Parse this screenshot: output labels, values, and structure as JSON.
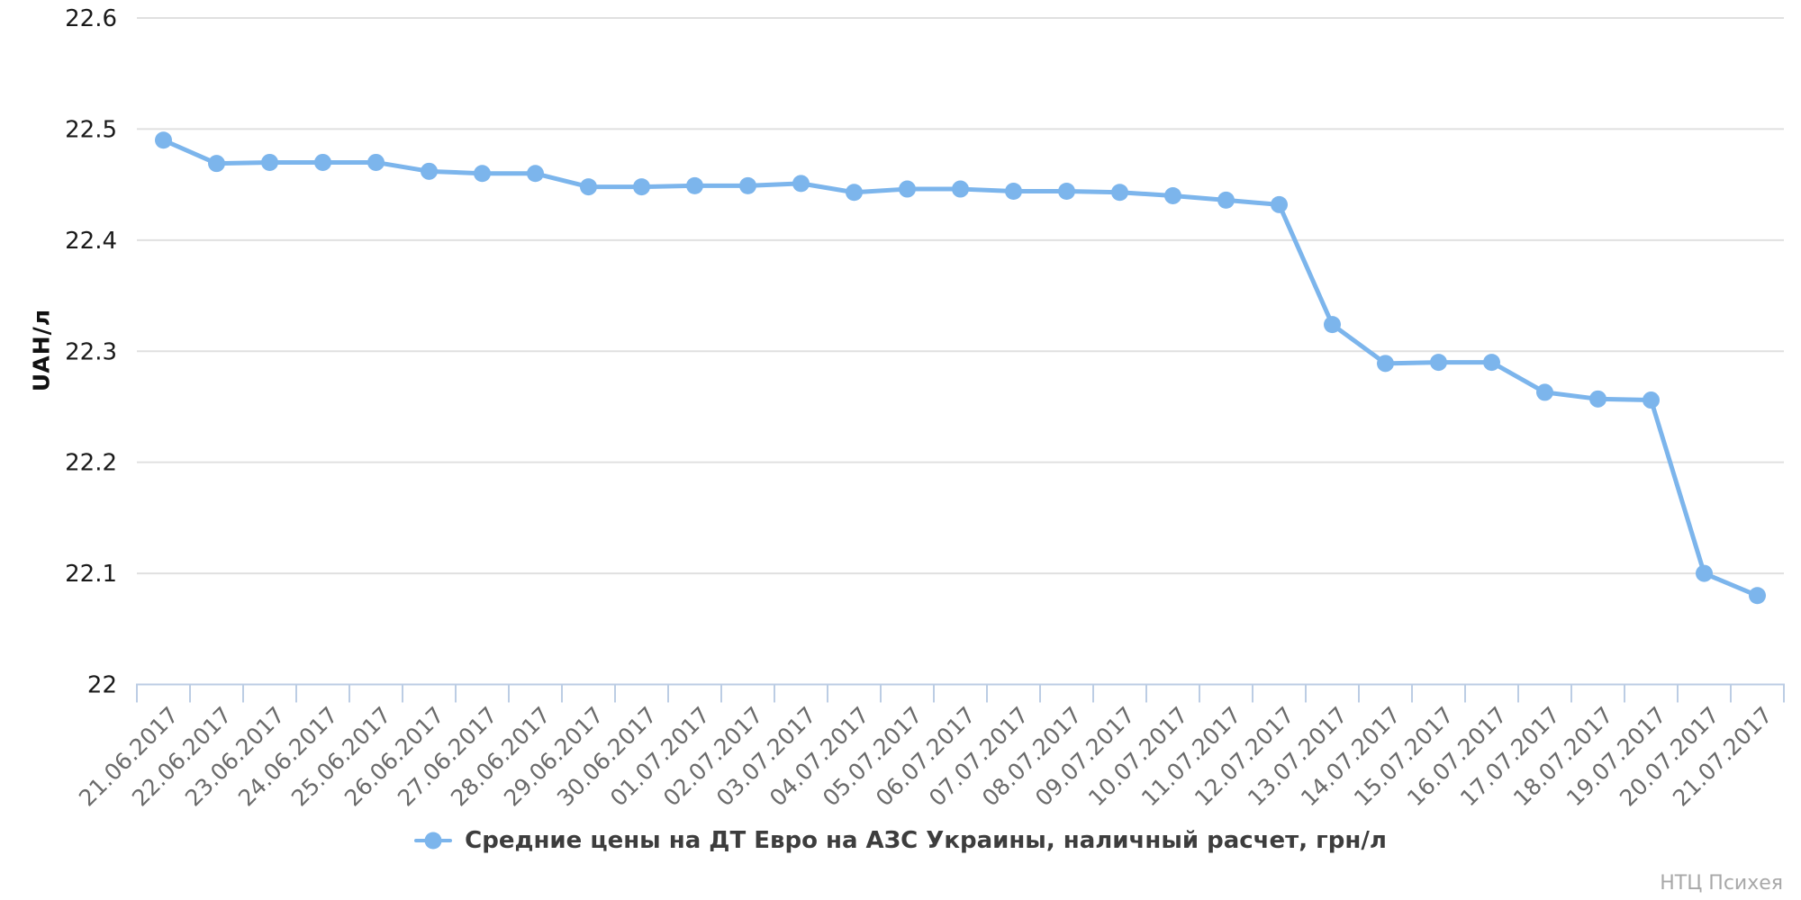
{
  "chart_data": {
    "type": "line",
    "title": "",
    "x": [
      "21.06.2017",
      "22.06.2017",
      "23.06.2017",
      "24.06.2017",
      "25.06.2017",
      "26.06.2017",
      "27.06.2017",
      "28.06.2017",
      "29.06.2017",
      "30.06.2017",
      "01.07.2017",
      "02.07.2017",
      "03.07.2017",
      "04.07.2017",
      "05.07.2017",
      "06.07.2017",
      "07.07.2017",
      "08.07.2017",
      "09.07.2017",
      "10.07.2017",
      "11.07.2017",
      "12.07.2017",
      "13.07.2017",
      "14.07.2017",
      "15.07.2017",
      "16.07.2017",
      "17.07.2017",
      "18.07.2017",
      "19.07.2017",
      "20.07.2017",
      "21.07.2017"
    ],
    "series": [
      {
        "name": "Средние цены на ДТ Евро на АЗС Украины, наличный расчет, грн/л",
        "values": [
          22.49,
          22.469,
          22.47,
          22.47,
          22.47,
          22.462,
          22.46,
          22.46,
          22.448,
          22.448,
          22.449,
          22.449,
          22.451,
          22.443,
          22.446,
          22.446,
          22.444,
          22.444,
          22.443,
          22.44,
          22.436,
          22.432,
          22.324,
          22.289,
          22.29,
          22.29,
          22.263,
          22.257,
          22.256,
          22.1,
          22.08
        ]
      }
    ],
    "xlabel": "",
    "ylabel": "UAH/л",
    "ylim": [
      22,
      22.6
    ],
    "y_ticks": [
      22,
      22.1,
      22.2,
      22.3,
      22.4,
      22.5,
      22.6
    ],
    "y_tick_labels": [
      "22",
      "22.1",
      "22.2",
      "22.3",
      "22.4",
      "22.5",
      "22.6"
    ],
    "grid": true,
    "legend_position": "bottom",
    "x_label_rotation": -45
  },
  "colors": {
    "series": "#7cb5ec",
    "grid": "#e0e0e0",
    "axis_line": "#bccde4",
    "y_tick_label": "#1a1a1a",
    "x_tick_label": "#6b6b6b",
    "legend_text": "#3d3d3d",
    "watermark": "#a8a8a8"
  },
  "y_axis_title": "UAH/л",
  "legend": {
    "label": "Средние цены на ДТ Евро на АЗС Украины, наличный расчет, грн/л"
  },
  "watermark": "НТЦ Психея"
}
